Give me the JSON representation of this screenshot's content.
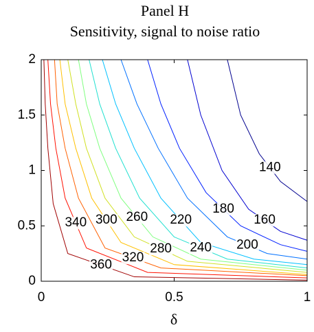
{
  "chart_data": {
    "type": "contour",
    "title": "Panel H",
    "subtitle": "Sensitivity, signal to noise ratio",
    "xlabel": "δ",
    "xlim": [
      0,
      1
    ],
    "ylim": [
      0,
      2
    ],
    "xticks": [
      0,
      0.5,
      1
    ],
    "yticks": [
      0,
      0.5,
      1,
      1.5,
      2
    ],
    "grid": false,
    "series": [
      {
        "name": "140",
        "color": "#00008f",
        "x": [
          0.7,
          0.75,
          0.82,
          0.9,
          1.0
        ],
        "values": [
          2,
          1.5,
          1.15,
          0.9,
          0.72
        ]
      },
      {
        "name": "160",
        "color": "#0000d0",
        "x": [
          0.55,
          0.6,
          0.68,
          0.78,
          0.9,
          1.0
        ],
        "values": [
          2,
          1.5,
          1.0,
          0.65,
          0.45,
          0.37
        ]
      },
      {
        "name": "180",
        "color": "#0020ff",
        "x": [
          0.4,
          0.45,
          0.52,
          0.62,
          0.75,
          0.9,
          1.0
        ],
        "values": [
          2,
          1.6,
          1.2,
          0.8,
          0.5,
          0.33,
          0.27
        ]
      },
      {
        "name": "200",
        "color": "#0070ff",
        "x": [
          0.3,
          0.36,
          0.44,
          0.55,
          0.7,
          0.85,
          1.0
        ],
        "values": [
          2,
          1.6,
          1.2,
          0.75,
          0.4,
          0.25,
          0.2
        ]
      },
      {
        "name": "220",
        "color": "#00c0ff",
        "x": [
          0.23,
          0.28,
          0.35,
          0.45,
          0.6,
          0.8,
          1.0
        ],
        "values": [
          2,
          1.6,
          1.2,
          0.75,
          0.35,
          0.2,
          0.15
        ]
      },
      {
        "name": "240",
        "color": "#20e0d0",
        "x": [
          0.18,
          0.22,
          0.28,
          0.37,
          0.5,
          0.7,
          1.0
        ],
        "values": [
          2,
          1.6,
          1.2,
          0.75,
          0.4,
          0.2,
          0.12
        ]
      },
      {
        "name": "260",
        "color": "#80ff80",
        "x": [
          0.14,
          0.17,
          0.22,
          0.3,
          0.42,
          0.6,
          1.0
        ],
        "values": [
          2,
          1.6,
          1.2,
          0.75,
          0.4,
          0.2,
          0.1
        ]
      },
      {
        "name": "280",
        "color": "#d0e020",
        "x": [
          0.1,
          0.13,
          0.17,
          0.24,
          0.35,
          0.55,
          1.0
        ],
        "values": [
          2,
          1.6,
          1.2,
          0.75,
          0.4,
          0.18,
          0.08
        ]
      },
      {
        "name": "300",
        "color": "#ffc000",
        "x": [
          0.07,
          0.09,
          0.13,
          0.19,
          0.3,
          0.5,
          1.0
        ],
        "values": [
          2,
          1.6,
          1.2,
          0.75,
          0.35,
          0.15,
          0.06
        ]
      },
      {
        "name": "320",
        "color": "#ff6000",
        "x": [
          0.05,
          0.06,
          0.09,
          0.14,
          0.24,
          0.45,
          1.0
        ],
        "values": [
          2,
          1.6,
          1.2,
          0.75,
          0.3,
          0.12,
          0.05
        ]
      },
      {
        "name": "340",
        "color": "#ff1000",
        "x": [
          0.025,
          0.035,
          0.055,
          0.09,
          0.17,
          0.4,
          1.0
        ],
        "values": [
          2,
          1.6,
          1.2,
          0.75,
          0.3,
          0.08,
          0.03
        ]
      },
      {
        "name": "360",
        "color": "#a00000",
        "x": [
          0.01,
          0.015,
          0.025,
          0.045,
          0.1,
          0.35,
          1.0
        ],
        "values": [
          2,
          1.6,
          1.2,
          0.7,
          0.25,
          0.04,
          0.01
        ]
      }
    ]
  }
}
